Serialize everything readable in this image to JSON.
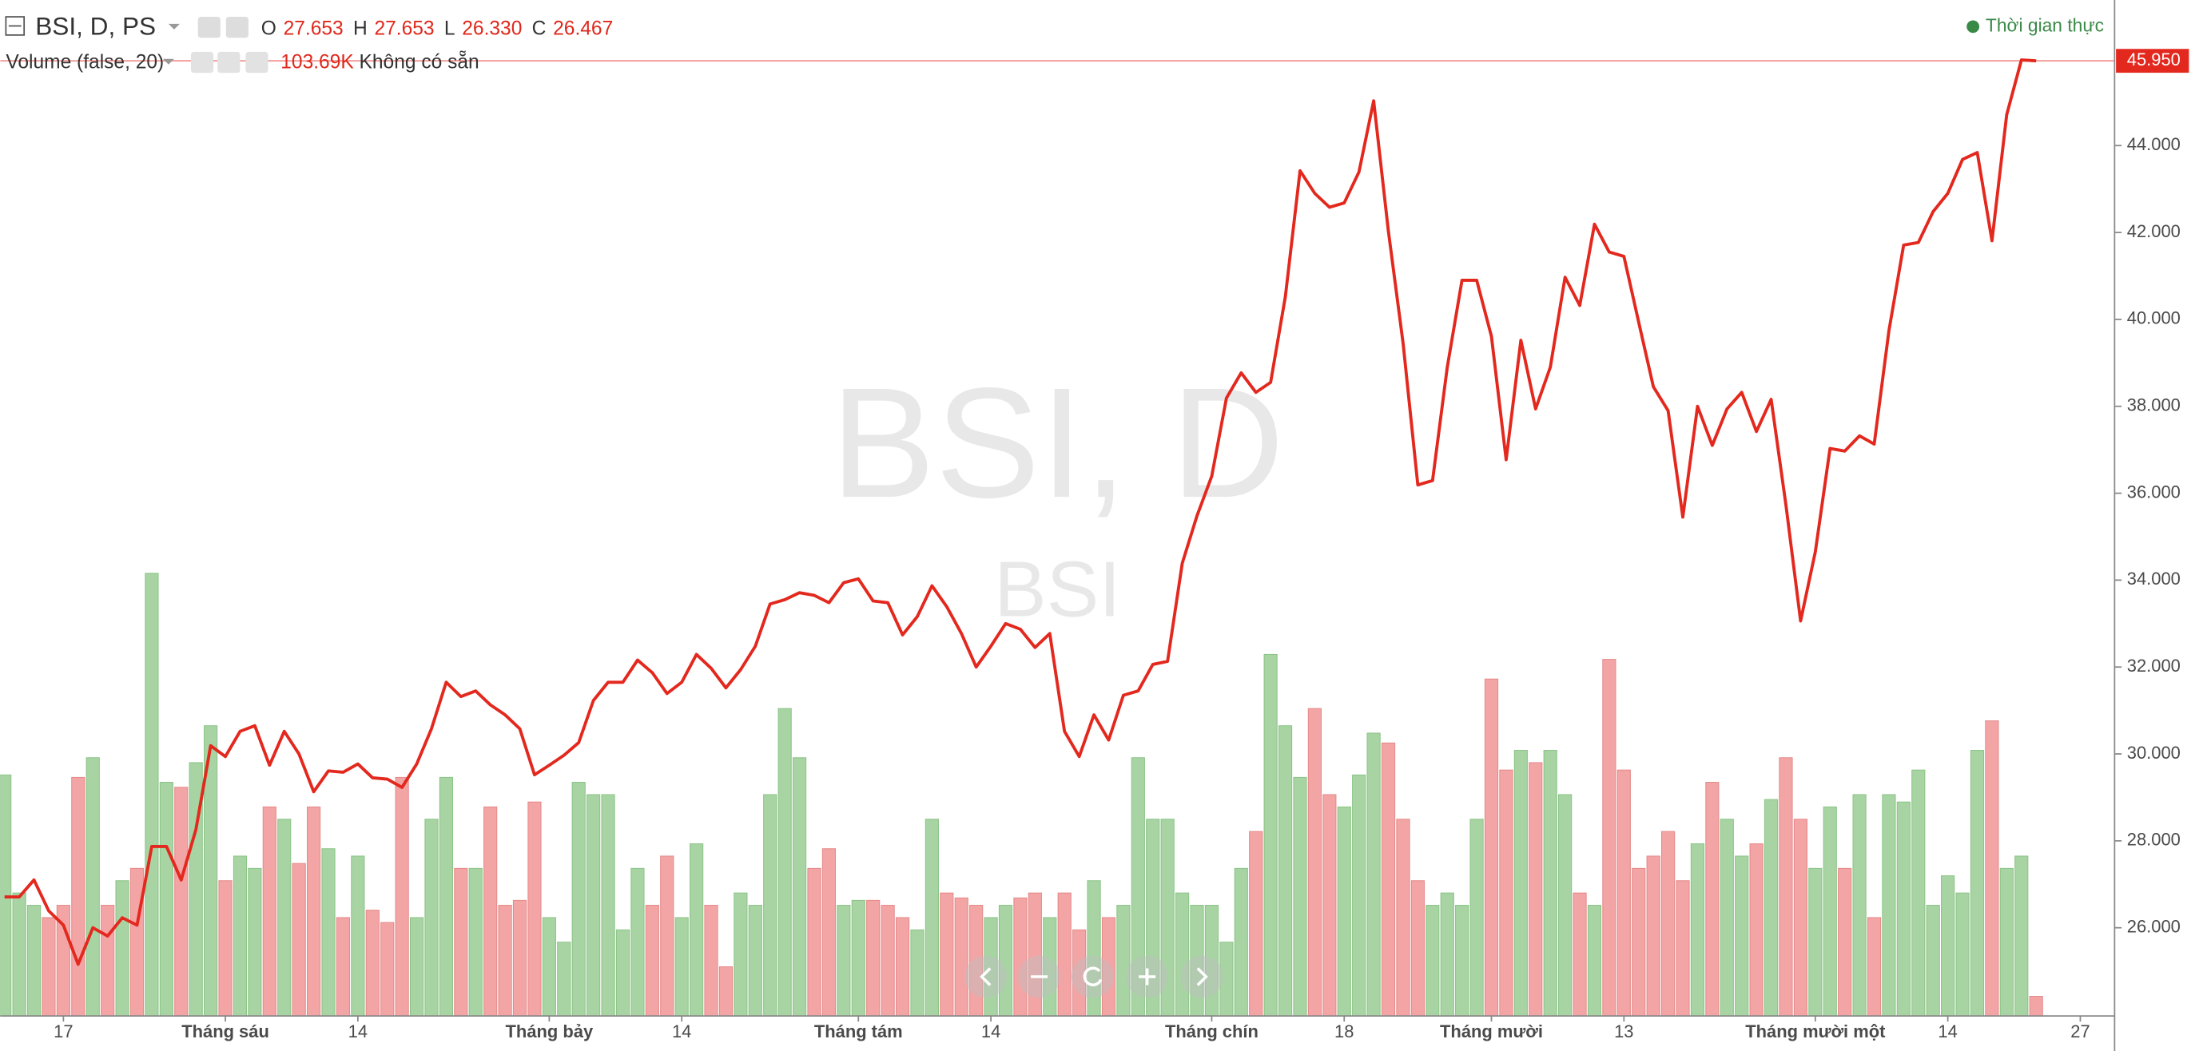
{
  "header": {
    "symbol": "BSI, D, PS",
    "ohlc": [
      {
        "key": "O",
        "value": "27.653"
      },
      {
        "key": "H",
        "value": "27.653"
      },
      {
        "key": "L",
        "value": "26.330"
      },
      {
        "key": "C",
        "value": "26.467"
      }
    ],
    "volume_title": "Volume (false, 20)",
    "volume_value": "103.69K",
    "volume_status": "Không có sẵn",
    "realtime": "Thời gian thực"
  },
  "chart_data": {
    "type": "line",
    "watermark": "BSI, D",
    "xlim": [
      -0.29,
      143.33
    ],
    "ylim": [
      23.97,
      47.35
    ],
    "yticks": [
      {
        "value": 26,
        "label": "26.000"
      },
      {
        "value": 28,
        "label": "28.000"
      },
      {
        "value": 30,
        "label": "30.000"
      },
      {
        "value": 32,
        "label": "32.000"
      },
      {
        "value": 34,
        "label": "34.000"
      },
      {
        "value": 36,
        "label": "36.000"
      },
      {
        "value": 38,
        "label": "38.000"
      },
      {
        "value": 40,
        "label": "40.000"
      },
      {
        "value": 42,
        "label": "42.000"
      },
      {
        "value": 44,
        "label": "44.000"
      }
    ],
    "xticks": [
      {
        "value": 4,
        "label": "17"
      },
      {
        "value": 15,
        "label": "Tháng sáu"
      },
      {
        "value": 24,
        "label": "14"
      },
      {
        "value": 37,
        "label": "Tháng bảy"
      },
      {
        "value": 46,
        "label": "14"
      },
      {
        "value": 58,
        "label": "Tháng tám"
      },
      {
        "value": 67,
        "label": "14"
      },
      {
        "value": 82,
        "label": "Tháng chín"
      },
      {
        "value": 91,
        "label": "18"
      },
      {
        "value": 101,
        "label": "Tháng mười"
      },
      {
        "value": 110,
        "label": "13"
      },
      {
        "value": 123,
        "label": "Tháng mười một"
      },
      {
        "value": 132,
        "label": "14"
      },
      {
        "value": 141,
        "label": "27"
      }
    ],
    "series": [
      {
        "name": "BSI",
        "color": "#e3281e",
        "values": [
          26.71,
          26.71,
          27.1,
          26.39,
          26.06,
          25.16,
          26.0,
          25.81,
          26.23,
          26.06,
          27.87,
          27.87,
          27.1,
          28.26,
          30.19,
          29.94,
          30.52,
          30.65,
          29.74,
          30.52,
          30.0,
          29.13,
          29.61,
          29.58,
          29.77,
          29.45,
          29.42,
          29.23,
          29.77,
          30.58,
          31.65,
          31.32,
          31.45,
          31.13,
          30.9,
          30.58,
          29.52,
          29.74,
          29.97,
          30.26,
          31.23,
          31.65,
          31.65,
          32.16,
          31.87,
          31.39,
          31.65,
          32.29,
          31.97,
          31.52,
          31.94,
          32.48,
          33.45,
          33.55,
          33.71,
          33.65,
          33.48,
          33.94,
          34.03,
          33.52,
          33.48,
          32.74,
          33.16,
          33.87,
          33.39,
          32.77,
          32.0,
          32.48,
          33.0,
          32.87,
          32.45,
          32.77,
          30.52,
          29.94,
          30.9,
          30.32,
          31.35,
          31.45,
          32.06,
          32.13,
          34.39,
          35.48,
          36.39,
          38.19,
          38.77,
          38.32,
          38.55,
          40.52,
          43.42,
          42.9,
          42.58,
          42.68,
          43.39,
          45.03,
          42.03,
          39.45,
          36.19,
          36.29,
          38.9,
          40.9,
          40.9,
          39.61,
          36.77,
          39.52,
          37.94,
          38.9,
          40.97,
          40.32,
          42.19,
          41.55,
          41.45,
          39.94,
          38.45,
          37.9,
          35.45,
          38.0,
          37.1,
          37.94,
          38.32,
          37.42,
          38.16,
          35.74,
          33.06,
          34.65,
          37.03,
          36.97,
          37.32,
          37.13,
          39.74,
          41.71,
          41.77,
          42.48,
          42.9,
          43.68,
          43.84,
          41.81,
          44.71,
          45.97,
          45.95
        ]
      }
    ],
    "last_price": {
      "value": 45.95,
      "label": "45.950",
      "color": "#e3281e"
    },
    "volume": {
      "vlim": [
        0,
        2400
      ],
      "up_color": "#a8d4a4",
      "down_color": "#f3a5a5",
      "values": [
        1274,
        650,
        585,
        520,
        585,
        1261,
        1365,
        585,
        715,
        780,
        2340,
        1235,
        1209,
        1339,
        1534,
        715,
        845,
        780,
        1105,
        1040,
        806,
        1105,
        884,
        520,
        845,
        559,
        494,
        1261,
        520,
        1040,
        1261,
        780,
        780,
        1105,
        585,
        611,
        1131,
        520,
        390,
        1235,
        1170,
        1170,
        455,
        780,
        585,
        845,
        520,
        910,
        585,
        260,
        650,
        585,
        1170,
        1625,
        1365,
        780,
        884,
        585,
        611,
        611,
        585,
        520,
        455,
        1040,
        650,
        624,
        585,
        520,
        585,
        624,
        650,
        520,
        650,
        455,
        715,
        520,
        585,
        1365,
        1040,
        1040,
        650,
        585,
        585,
        390,
        780,
        975,
        1911,
        1534,
        1261,
        1625,
        1170,
        1105,
        1274,
        1495,
        1443,
        1040,
        715,
        585,
        650,
        585,
        1040,
        1781,
        1300,
        1404,
        1339,
        1404,
        1170,
        650,
        585,
        1885,
        1300,
        780,
        845,
        975,
        715,
        910,
        1235,
        1040,
        845,
        910,
        1144,
        1365,
        1040,
        780,
        1105,
        780,
        1170,
        520,
        1170,
        1131,
        1300,
        585,
        741,
        650,
        1404,
        1560,
        780,
        845,
        103.69
      ]
    }
  }
}
